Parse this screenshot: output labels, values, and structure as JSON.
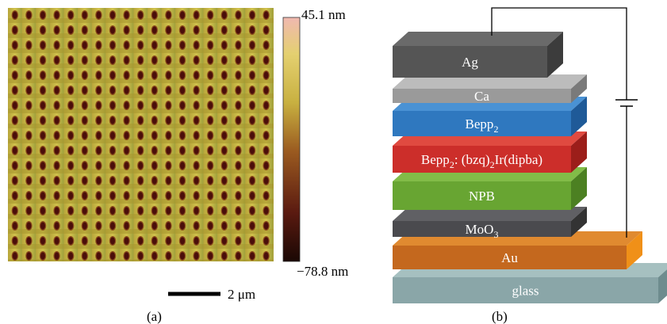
{
  "panel_a": {
    "colorbar": {
      "max_label": "45.1 nm",
      "min_label": "−78.8 nm"
    },
    "scale_bar": "2 μm",
    "caption": "(a)"
  },
  "panel_b": {
    "layers": [
      {
        "label": [
          {
            "text": "Ag"
          }
        ]
      },
      {
        "label": [
          {
            "text": "Ca"
          }
        ]
      },
      {
        "label": [
          {
            "text": "Bepp"
          },
          {
            "sub": "2"
          }
        ]
      },
      {
        "label": [
          {
            "text": "Bepp"
          },
          {
            "sub": "2"
          },
          {
            "text": ": (bzq)"
          },
          {
            "sub": "2"
          },
          {
            "text": "Ir(dipba)"
          }
        ]
      },
      {
        "label": [
          {
            "text": "NPB"
          }
        ]
      },
      {
        "label": [
          {
            "text": "MoO"
          },
          {
            "sub": "3"
          }
        ]
      },
      {
        "label": [
          {
            "text": "Au"
          }
        ]
      },
      {
        "label": [
          {
            "text": "glass"
          }
        ]
      }
    ],
    "caption": "(b)"
  }
}
